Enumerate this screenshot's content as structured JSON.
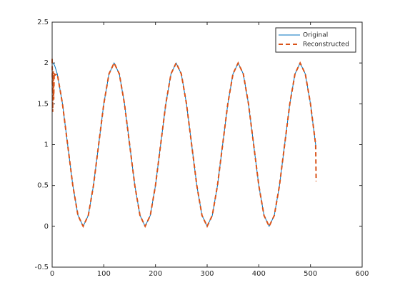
{
  "chart_data": {
    "type": "line",
    "x": [
      0,
      1,
      2,
      3,
      4,
      5,
      10,
      20,
      30,
      40,
      50,
      60,
      70,
      80,
      90,
      100,
      110,
      120,
      130,
      140,
      150,
      160,
      170,
      180,
      190,
      200,
      210,
      220,
      230,
      240,
      250,
      260,
      270,
      280,
      290,
      300,
      310,
      320,
      330,
      340,
      350,
      360,
      370,
      380,
      390,
      400,
      410,
      420,
      430,
      440,
      450,
      460,
      470,
      480,
      490,
      500,
      510,
      511
    ],
    "series": [
      {
        "name": "Original",
        "color": "#0072bd",
        "dashed": false,
        "values": [
          2,
          1.999,
          1.995,
          1.988,
          1.978,
          1.966,
          1.866,
          1.5,
          1,
          0.5,
          0.134,
          0,
          0.134,
          0.5,
          1,
          1.5,
          1.866,
          2,
          1.866,
          1.5,
          1,
          0.5,
          0.134,
          0,
          0.134,
          0.5,
          1,
          1.5,
          1.866,
          2,
          1.866,
          1.5,
          1,
          0.5,
          0.134,
          0,
          0.134,
          0.5,
          1,
          1.5,
          1.866,
          2,
          1.866,
          1.5,
          1,
          0.5,
          0.134,
          0,
          0.134,
          0.5,
          1,
          1.5,
          1.866,
          2,
          1.866,
          1.5,
          1,
          0.948
        ]
      },
      {
        "name": "Reconstructed",
        "color": "#d95319",
        "dashed": true,
        "values": [
          2.05,
          1.4,
          1.9,
          1.55,
          1.88,
          1.85,
          1.866,
          1.5,
          1,
          0.5,
          0.134,
          0,
          0.134,
          0.5,
          1,
          1.5,
          1.866,
          2,
          1.866,
          1.5,
          1,
          0.5,
          0.134,
          0,
          0.134,
          0.5,
          1,
          1.5,
          1.866,
          2,
          1.866,
          1.5,
          1,
          0.5,
          0.134,
          0,
          0.134,
          0.5,
          1,
          1.5,
          1.866,
          2,
          1.866,
          1.5,
          1,
          0.5,
          0.134,
          0,
          0.134,
          0.5,
          1,
          1.5,
          1.866,
          2,
          1.866,
          1.5,
          1,
          0.55
        ]
      }
    ],
    "xlim": [
      0,
      600
    ],
    "xticks": [
      0,
      100,
      200,
      300,
      400,
      500,
      600
    ],
    "ylim": [
      -0.5,
      2.5
    ],
    "yticks": [
      -0.5,
      0,
      0.5,
      1,
      1.5,
      2,
      2.5
    ],
    "grid": false,
    "legend": "northeast"
  }
}
